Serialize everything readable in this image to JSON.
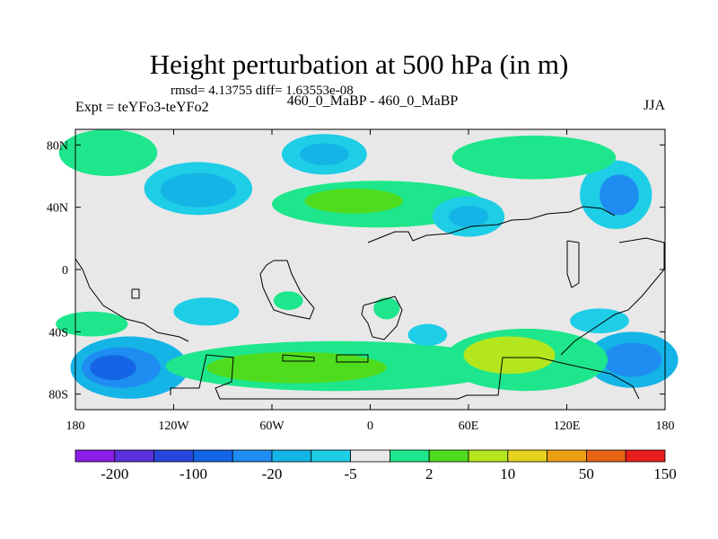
{
  "chart_data": {
    "type": "heatmap",
    "title": "Height perturbation at 500 hPa (in m)",
    "stats_text": "rmsd= 4.13755 diff= 1.63553e-08",
    "left_label": "Expt = teYFo3-teYFo2",
    "center_label": "460_0_MaBP - 460_0_MaBP",
    "right_label": "JJA",
    "xlim": [
      -180,
      180
    ],
    "ylim": [
      -90,
      90
    ],
    "x_ticks": [
      {
        "value": -180,
        "label": "180"
      },
      {
        "value": -120,
        "label": "120W"
      },
      {
        "value": -60,
        "label": "60W"
      },
      {
        "value": 0,
        "label": "0"
      },
      {
        "value": 60,
        "label": "60E"
      },
      {
        "value": 120,
        "label": "120E"
      },
      {
        "value": 180,
        "label": "180"
      }
    ],
    "y_ticks": [
      {
        "value": 80,
        "label": "80N"
      },
      {
        "value": 40,
        "label": "40N"
      },
      {
        "value": 0,
        "label": "0"
      },
      {
        "value": -40,
        "label": "40S"
      },
      {
        "value": -80,
        "label": "80S"
      }
    ],
    "colorbar": {
      "colors": [
        "#8c1ee6",
        "#5a32dc",
        "#2846dc",
        "#1464e6",
        "#1e8cf0",
        "#14b4e6",
        "#1ecde6",
        "#e8e8e8",
        "#1ee68c",
        "#50dc1e",
        "#b4e61e",
        "#e6d21e",
        "#eba014",
        "#e66414",
        "#e61e1e"
      ],
      "labels": [
        {
          "after_index": 0,
          "label": "-200"
        },
        {
          "after_index": 2,
          "label": "-100"
        },
        {
          "after_index": 4,
          "label": "-20"
        },
        {
          "after_index": 6,
          "label": "-5"
        },
        {
          "after_index": 8,
          "label": "2"
        },
        {
          "after_index": 10,
          "label": "10"
        },
        {
          "after_index": 12,
          "label": "50"
        },
        {
          "after_index": 14,
          "label": "150"
        }
      ]
    },
    "features": [
      {
        "name": "south-pacific-trough",
        "color_index": 5,
        "lon": -147,
        "lat": -63,
        "rlon": 36,
        "rlat": 20
      },
      {
        "name": "south-pacific-trough-core",
        "color_index": 4,
        "lon": -152,
        "lat": -63,
        "rlon": 24,
        "rlat": 13
      },
      {
        "name": "south-pacific-trough-inner",
        "color_index": 3,
        "lon": -157,
        "lat": -63,
        "rlon": 14,
        "rlat": 8
      },
      {
        "name": "south-indian-trough",
        "color_index": 5,
        "lon": 160,
        "lat": -58,
        "rlon": 28,
        "rlat": 18
      },
      {
        "name": "south-indian-trough-core",
        "color_index": 4,
        "lon": 160,
        "lat": -58,
        "rlon": 18,
        "rlat": 11
      },
      {
        "name": "southern-ridge",
        "color_index": 8,
        "lon": -20,
        "lat": -62,
        "rlon": 105,
        "rlat": 16
      },
      {
        "name": "southern-ridge-core",
        "color_index": 9,
        "lon": -45,
        "lat": -63,
        "rlon": 55,
        "rlat": 10
      },
      {
        "name": "southern-ridge-east",
        "color_index": 8,
        "lon": 95,
        "lat": -58,
        "rlon": 50,
        "rlat": 20
      },
      {
        "name": "southern-ridge-east-core",
        "color_index": 10,
        "lon": 85,
        "lat": -55,
        "rlon": 28,
        "rlat": 12
      },
      {
        "name": "north-pacific-low",
        "color_index": 6,
        "lon": -105,
        "lat": 52,
        "rlon": 33,
        "rlat": 17
      },
      {
        "name": "north-pacific-low-core",
        "color_index": 5,
        "lon": -105,
        "lat": 51,
        "rlon": 23,
        "rlat": 11
      },
      {
        "name": "north-atlantic-low",
        "color_index": 6,
        "lon": -28,
        "lat": 74,
        "rlon": 26,
        "rlat": 13
      },
      {
        "name": "north-atlantic-low-core",
        "color_index": 5,
        "lon": -28,
        "lat": 74,
        "rlon": 15,
        "rlat": 7
      },
      {
        "name": "north-ridge",
        "color_index": 8,
        "lon": 5,
        "lat": 42,
        "rlon": 65,
        "rlat": 15
      },
      {
        "name": "north-ridge-core",
        "color_index": 9,
        "lon": -10,
        "lat": 44,
        "rlon": 30,
        "rlat": 8
      },
      {
        "name": "asia-low",
        "color_index": 6,
        "lon": 60,
        "lat": 34,
        "rlon": 22,
        "rlat": 13
      },
      {
        "name": "asia-low-core",
        "color_index": 5,
        "lon": 60,
        "lat": 34,
        "rlon": 12,
        "rlat": 7
      },
      {
        "name": "pacific-low-east",
        "color_index": 6,
        "lon": 150,
        "lat": 48,
        "rlon": 22,
        "rlat": 22
      },
      {
        "name": "pacific-low-east-core",
        "color_index": 4,
        "lon": 152,
        "lat": 48,
        "rlon": 12,
        "rlat": 13
      },
      {
        "name": "north-ridge-west",
        "color_index": 8,
        "lon": -160,
        "lat": 75,
        "rlon": 30,
        "rlat": 15
      },
      {
        "name": "north-ridge-east",
        "color_index": 8,
        "lon": 100,
        "lat": 72,
        "rlon": 50,
        "rlat": 14
      },
      {
        "name": "tropical-low-west",
        "color_index": 6,
        "lon": -100,
        "lat": -27,
        "rlon": 20,
        "rlat": 9
      },
      {
        "name": "tropical-high-atlantic",
        "color_index": 8,
        "lon": -50,
        "lat": -20,
        "rlon": 9,
        "rlat": 6
      },
      {
        "name": "tropical-high-africa",
        "color_index": 8,
        "lon": 10,
        "lat": -25,
        "rlon": 8,
        "rlat": 7
      },
      {
        "name": "tropical-low-indian",
        "color_index": 6,
        "lon": 35,
        "lat": -42,
        "rlon": 12,
        "rlat": 7
      },
      {
        "name": "tropical-low-west-pacific",
        "color_index": 6,
        "lon": 140,
        "lat": -33,
        "rlon": 18,
        "rlat": 8
      },
      {
        "name": "southern-ridge-west",
        "color_index": 8,
        "lon": -170,
        "lat": -35,
        "rlon": 22,
        "rlat": 8
      }
    ]
  }
}
